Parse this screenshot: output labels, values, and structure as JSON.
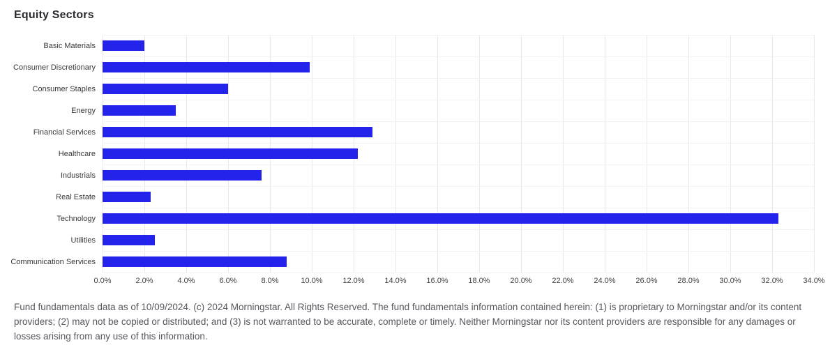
{
  "page": {
    "title": "Equity Sectors",
    "footer": "Fund fundamentals data as of 10/09/2024. (c) 2024 Morningstar. All Rights Reserved. The fund fundamentals information contained herein: (1) is proprietary to Morningstar and/or its content providers; (2) may not be copied or distributed; and (3) is not warranted to be accurate, complete or timely. Neither Morningstar nor its content providers are responsible for any damages or losses arising from any use of this information."
  },
  "colors": {
    "bar": "#2323eb",
    "gridline": "#e8e8f0",
    "row_separator": "#f1f1f7",
    "title_text": "#2a2a30",
    "category_text": "#38383d",
    "tick_text": "#404046",
    "footer_text": "#55565e"
  },
  "chart_data": {
    "type": "bar",
    "orientation": "horizontal",
    "title": "Equity Sectors",
    "categories": [
      "Basic Materials",
      "Consumer Discretionary",
      "Consumer Staples",
      "Energy",
      "Financial Services",
      "Healthcare",
      "Industrials",
      "Real Estate",
      "Technology",
      "Utilities",
      "Communication Services"
    ],
    "values": [
      2.0,
      9.9,
      6.0,
      3.5,
      12.9,
      12.2,
      7.6,
      2.3,
      32.3,
      2.5,
      8.8
    ],
    "unit": "%",
    "xlabel": "",
    "ylabel": "",
    "xlim": [
      0,
      34
    ],
    "x_tick_step": 2,
    "x_tick_labels": [
      "0.0%",
      "2.0%",
      "4.0%",
      "6.0%",
      "8.0%",
      "10.0%",
      "12.0%",
      "14.0%",
      "16.0%",
      "18.0%",
      "20.0%",
      "22.0%",
      "24.0%",
      "26.0%",
      "28.0%",
      "30.0%",
      "32.0%",
      "34.0%"
    ],
    "grid": true,
    "legend": false
  }
}
